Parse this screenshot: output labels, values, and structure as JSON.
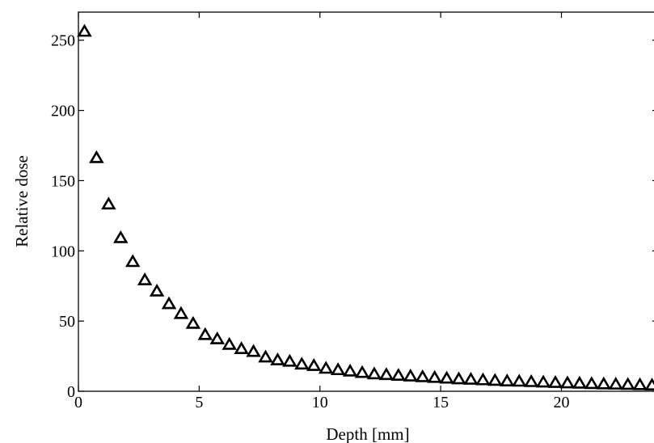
{
  "chart_data": {
    "type": "scatter",
    "title": "",
    "xlabel": "Depth [mm]",
    "ylabel": "Relative dose",
    "xlim": [
      0,
      24
    ],
    "ylim": [
      0,
      270
    ],
    "xticks": [
      0,
      5,
      10,
      15,
      20
    ],
    "yticks": [
      0,
      50,
      100,
      150,
      200,
      250
    ],
    "grid": false,
    "legend": "none",
    "marker": "triangle-open",
    "color": "#000000",
    "series": [
      {
        "x": [
          0.25,
          0.75,
          1.25,
          1.75,
          2.25,
          2.75,
          3.25,
          3.75,
          4.25,
          4.75,
          5.25,
          5.75,
          6.25,
          6.75,
          7.25,
          7.75,
          8.25,
          8.75,
          9.25,
          9.75,
          10.25,
          10.75,
          11.25,
          11.75,
          12.25,
          12.75,
          13.25,
          13.75,
          14.25,
          14.75,
          15.25,
          15.75,
          16.25,
          16.75,
          17.25,
          17.75,
          18.25,
          18.75,
          19.25,
          19.75,
          20.25,
          20.75,
          21.25,
          21.75,
          22.25,
          22.75,
          23.25,
          23.75
        ],
        "y": [
          256,
          166,
          133,
          109,
          92,
          79,
          71,
          62,
          55,
          48,
          40,
          37,
          33,
          30,
          28,
          24,
          22,
          21,
          19,
          18,
          16,
          15,
          14,
          13,
          12,
          11.5,
          11,
          10.5,
          10,
          9.5,
          9,
          8.5,
          8.2,
          7.8,
          7.4,
          7,
          6.8,
          6.5,
          6.2,
          5.9,
          5.6,
          5.4,
          5.1,
          4.9,
          4.7,
          4.5,
          4.3,
          4.1
        ]
      }
    ]
  }
}
